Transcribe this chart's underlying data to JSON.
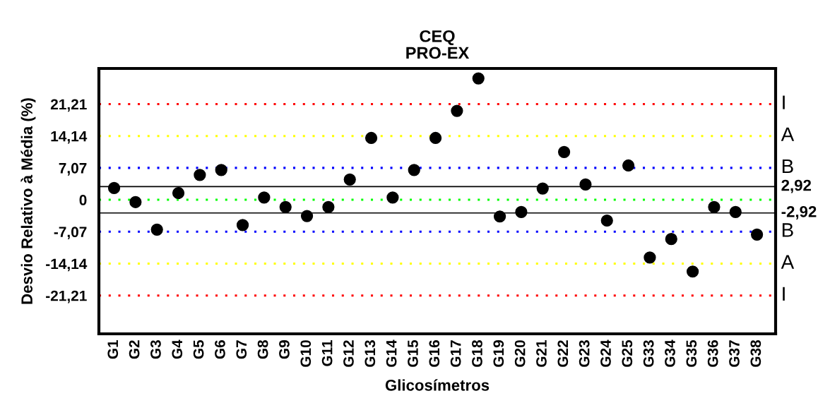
{
  "chart_data": {
    "type": "scatter",
    "title": "CEQ\nPRO-EX",
    "xlabel": "Glicosímetros",
    "ylabel": "Desvio Relativo à Média (%)",
    "categories": [
      "G1",
      "G2",
      "G3",
      "G4",
      "G5",
      "G6",
      "G7",
      "G8",
      "G9",
      "G10",
      "G11",
      "G12",
      "G13",
      "G14",
      "G15",
      "G16",
      "G17",
      "G18",
      "G19",
      "G20",
      "G21",
      "G22",
      "G23",
      "G24",
      "G25",
      "G33",
      "G34",
      "G35",
      "G36",
      "G37",
      "G38"
    ],
    "series": [
      {
        "color": "#000000",
        "values": [
          2.6,
          -0.5,
          -6.6,
          1.5,
          5.5,
          6.6,
          -5.6,
          0.5,
          -1.6,
          -3.6,
          -1.6,
          4.5,
          13.7,
          0.5,
          6.6,
          13.7,
          19.7,
          26.9,
          -3.7,
          -2.7,
          2.5,
          10.6,
          3.4,
          -4.6,
          7.6,
          -12.8,
          -8.7,
          -15.9,
          -1.6,
          -2.7,
          -7.7
        ]
      }
    ],
    "marker": "circle",
    "ylim": [
      -29.7,
      29.1
    ],
    "yticks": [
      {
        "value": -21.21,
        "label": "-21,21"
      },
      {
        "value": -14.14,
        "label": "-14,14"
      },
      {
        "value": -7.07,
        "label": "-7,07"
      },
      0,
      {
        "value": 7.07,
        "label": "7,07"
      },
      {
        "value": 14.14,
        "label": "14,14"
      },
      {
        "value": 21.21,
        "label": "21,21"
      }
    ],
    "ref_lines": [
      {
        "axis": "y",
        "value": 21.21,
        "label": "I",
        "color": "#ff0000",
        "line_style": "dotted"
      },
      {
        "axis": "y",
        "value": 14.14,
        "label": "A",
        "color": "#ffff00",
        "line_style": "dotted"
      },
      {
        "axis": "y",
        "value": 7.07,
        "label": "B",
        "color": "#0000ff",
        "line_style": "dotted"
      },
      {
        "axis": "y",
        "value": 2.92,
        "label": "2,92",
        "color": "#000000",
        "line_style": "solid"
      },
      {
        "axis": "y",
        "value": 0,
        "color": "#00ff00",
        "line_style": "dotted"
      },
      {
        "axis": "y",
        "value": -2.92,
        "label": "-2,92",
        "color": "#000000",
        "line_style": "solid"
      },
      {
        "axis": "y",
        "value": -7.07,
        "label": "B",
        "color": "#0000ff",
        "line_style": "dotted"
      },
      {
        "axis": "y",
        "value": -14.14,
        "label": "A",
        "color": "#ffff00",
        "line_style": "dotted"
      },
      {
        "axis": "y",
        "value": -21.21,
        "label": "I",
        "color": "#ff0000",
        "line_style": "dotted"
      }
    ],
    "grid": false,
    "legend": false
  }
}
